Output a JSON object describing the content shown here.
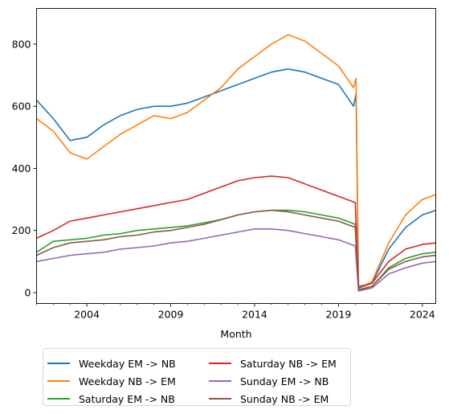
{
  "chart_data": {
    "type": "line",
    "xlabel": "Month",
    "ylabel": "",
    "title": "",
    "x_ticks": [
      "2004",
      "2009",
      "2014",
      "2019",
      "2024"
    ],
    "y_ticks": [
      "0",
      "200",
      "400",
      "600",
      "800"
    ],
    "xlim": [
      2001.0,
      2024.8
    ],
    "ylim": [
      -35,
      915
    ],
    "grid": false,
    "legend_placement": "below",
    "series": [
      {
        "name": "Weekday EM -> NB",
        "color": "#1f77b4",
        "points": [
          [
            2001.0,
            620
          ],
          [
            2002.0,
            560
          ],
          [
            2003.0,
            490
          ],
          [
            2004.0,
            500
          ],
          [
            2005.0,
            540
          ],
          [
            2006.0,
            570
          ],
          [
            2007.0,
            590
          ],
          [
            2008.0,
            600
          ],
          [
            2009.0,
            600
          ],
          [
            2010.0,
            610
          ],
          [
            2011.0,
            630
          ],
          [
            2012.0,
            650
          ],
          [
            2013.0,
            670
          ],
          [
            2014.0,
            690
          ],
          [
            2015.0,
            710
          ],
          [
            2016.0,
            720
          ],
          [
            2017.0,
            710
          ],
          [
            2018.0,
            690
          ],
          [
            2019.0,
            670
          ],
          [
            2019.9,
            600
          ],
          [
            2020.05,
            640
          ],
          [
            2020.2,
            20
          ],
          [
            2021.0,
            30
          ],
          [
            2022.0,
            140
          ],
          [
            2023.0,
            210
          ],
          [
            2024.0,
            250
          ],
          [
            2024.8,
            265
          ]
        ]
      },
      {
        "name": "Weekday NB -> EM",
        "color": "#ff7f0e",
        "points": [
          [
            2001.0,
            560
          ],
          [
            2002.0,
            520
          ],
          [
            2003.0,
            450
          ],
          [
            2004.0,
            430
          ],
          [
            2005.0,
            470
          ],
          [
            2006.0,
            510
          ],
          [
            2007.0,
            540
          ],
          [
            2008.0,
            570
          ],
          [
            2009.0,
            560
          ],
          [
            2010.0,
            580
          ],
          [
            2011.0,
            620
          ],
          [
            2012.0,
            660
          ],
          [
            2013.0,
            720
          ],
          [
            2014.0,
            760
          ],
          [
            2015.0,
            800
          ],
          [
            2016.0,
            830
          ],
          [
            2017.0,
            810
          ],
          [
            2018.0,
            770
          ],
          [
            2019.0,
            730
          ],
          [
            2019.9,
            660
          ],
          [
            2020.05,
            690
          ],
          [
            2020.2,
            15
          ],
          [
            2021.0,
            35
          ],
          [
            2022.0,
            160
          ],
          [
            2023.0,
            250
          ],
          [
            2024.0,
            300
          ],
          [
            2024.8,
            315
          ]
        ]
      },
      {
        "name": "Saturday EM -> NB",
        "color": "#2ca02c",
        "points": [
          [
            2001.0,
            130
          ],
          [
            2002.0,
            165
          ],
          [
            2003.0,
            170
          ],
          [
            2004.0,
            175
          ],
          [
            2005.0,
            185
          ],
          [
            2006.0,
            190
          ],
          [
            2007.0,
            200
          ],
          [
            2008.0,
            205
          ],
          [
            2009.0,
            210
          ],
          [
            2010.0,
            215
          ],
          [
            2011.0,
            225
          ],
          [
            2012.0,
            235
          ],
          [
            2013.0,
            250
          ],
          [
            2014.0,
            260
          ],
          [
            2015.0,
            265
          ],
          [
            2016.0,
            265
          ],
          [
            2017.0,
            260
          ],
          [
            2018.0,
            250
          ],
          [
            2019.0,
            240
          ],
          [
            2020.0,
            220
          ],
          [
            2020.2,
            10
          ],
          [
            2021.0,
            20
          ],
          [
            2022.0,
            80
          ],
          [
            2023.0,
            110
          ],
          [
            2024.0,
            125
          ],
          [
            2024.8,
            130
          ]
        ]
      },
      {
        "name": "Saturday NB -> EM",
        "color": "#d62728",
        "points": [
          [
            2001.0,
            175
          ],
          [
            2002.0,
            200
          ],
          [
            2003.0,
            230
          ],
          [
            2004.0,
            240
          ],
          [
            2005.0,
            250
          ],
          [
            2006.0,
            260
          ],
          [
            2007.0,
            270
          ],
          [
            2008.0,
            280
          ],
          [
            2009.0,
            290
          ],
          [
            2010.0,
            300
          ],
          [
            2011.0,
            320
          ],
          [
            2012.0,
            340
          ],
          [
            2013.0,
            360
          ],
          [
            2014.0,
            370
          ],
          [
            2015.0,
            375
          ],
          [
            2016.0,
            370
          ],
          [
            2017.0,
            350
          ],
          [
            2018.0,
            330
          ],
          [
            2019.0,
            310
          ],
          [
            2020.0,
            290
          ],
          [
            2020.2,
            15
          ],
          [
            2021.0,
            30
          ],
          [
            2022.0,
            100
          ],
          [
            2023.0,
            140
          ],
          [
            2024.0,
            155
          ],
          [
            2024.8,
            160
          ]
        ]
      },
      {
        "name": "Sunday EM -> NB",
        "color": "#9467bd",
        "points": [
          [
            2001.0,
            100
          ],
          [
            2002.0,
            110
          ],
          [
            2003.0,
            120
          ],
          [
            2004.0,
            125
          ],
          [
            2005.0,
            130
          ],
          [
            2006.0,
            140
          ],
          [
            2007.0,
            145
          ],
          [
            2008.0,
            150
          ],
          [
            2009.0,
            160
          ],
          [
            2010.0,
            165
          ],
          [
            2011.0,
            175
          ],
          [
            2012.0,
            185
          ],
          [
            2013.0,
            195
          ],
          [
            2014.0,
            205
          ],
          [
            2015.0,
            205
          ],
          [
            2016.0,
            200
          ],
          [
            2017.0,
            190
          ],
          [
            2018.0,
            180
          ],
          [
            2019.0,
            170
          ],
          [
            2020.0,
            150
          ],
          [
            2020.2,
            5
          ],
          [
            2021.0,
            15
          ],
          [
            2022.0,
            60
          ],
          [
            2023.0,
            80
          ],
          [
            2024.0,
            95
          ],
          [
            2024.8,
            100
          ]
        ]
      },
      {
        "name": "Sunday NB -> EM",
        "color": "#8c564b",
        "points": [
          [
            2001.0,
            120
          ],
          [
            2002.0,
            145
          ],
          [
            2003.0,
            160
          ],
          [
            2004.0,
            165
          ],
          [
            2005.0,
            170
          ],
          [
            2006.0,
            180
          ],
          [
            2007.0,
            185
          ],
          [
            2008.0,
            195
          ],
          [
            2009.0,
            200
          ],
          [
            2010.0,
            210
          ],
          [
            2011.0,
            220
          ],
          [
            2012.0,
            235
          ],
          [
            2013.0,
            250
          ],
          [
            2014.0,
            260
          ],
          [
            2015.0,
            265
          ],
          [
            2016.0,
            260
          ],
          [
            2017.0,
            250
          ],
          [
            2018.0,
            240
          ],
          [
            2019.0,
            230
          ],
          [
            2020.0,
            210
          ],
          [
            2020.2,
            8
          ],
          [
            2021.0,
            20
          ],
          [
            2022.0,
            75
          ],
          [
            2023.0,
            100
          ],
          [
            2024.0,
            115
          ],
          [
            2024.8,
            120
          ]
        ]
      }
    ]
  }
}
